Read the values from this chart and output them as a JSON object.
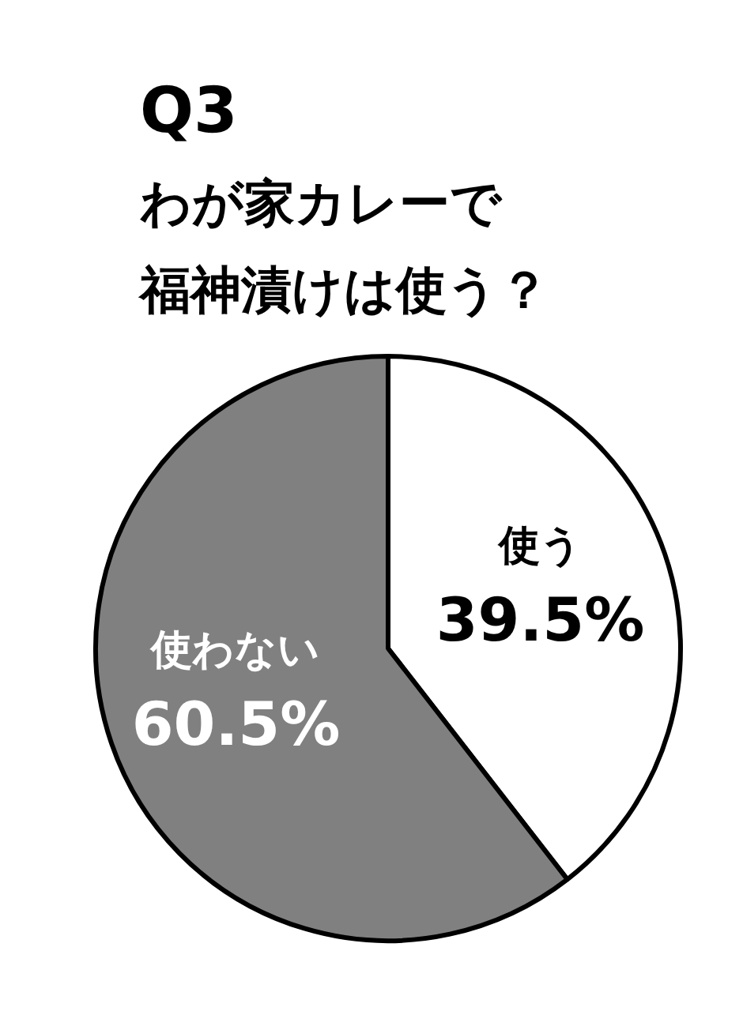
{
  "chart_data": {
    "type": "pie",
    "title": "Q3",
    "subtitle": "わが家カレーで福神漬けは使う？",
    "categories": [
      "使う",
      "使わない"
    ],
    "values": [
      39.5,
      60.5
    ],
    "colors": [
      "#ffffff",
      "#808080"
    ],
    "value_labels": [
      "39.5%",
      "60.5%"
    ]
  }
}
